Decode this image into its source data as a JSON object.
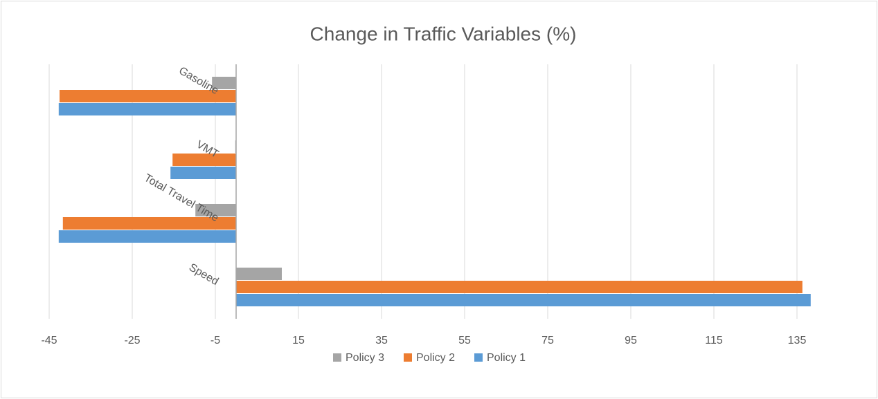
{
  "chart_data": {
    "type": "bar",
    "orientation": "horizontal",
    "title": "Change in Traffic Variables (%)",
    "categories": [
      "Speed",
      "Total Travel Time",
      "VMT",
      "Gasoline"
    ],
    "series": [
      {
        "name": "Policy 1",
        "color": "#5b9bd5",
        "values": [
          138.3,
          -42.7,
          -15.8,
          -42.7
        ]
      },
      {
        "name": "Policy 2",
        "color": "#ed7d31",
        "values": [
          136.3,
          -41.7,
          -15.3,
          -42.5
        ]
      },
      {
        "name": "Policy 3",
        "color": "#a5a5a5",
        "values": [
          11,
          -9.8,
          -0.2,
          -5.8
        ]
      }
    ],
    "xlim": [
      -45,
      145
    ],
    "xticks": [
      -45,
      -25,
      -5,
      15,
      35,
      55,
      75,
      95,
      115,
      135
    ],
    "grid": true,
    "legend": "bottom"
  }
}
